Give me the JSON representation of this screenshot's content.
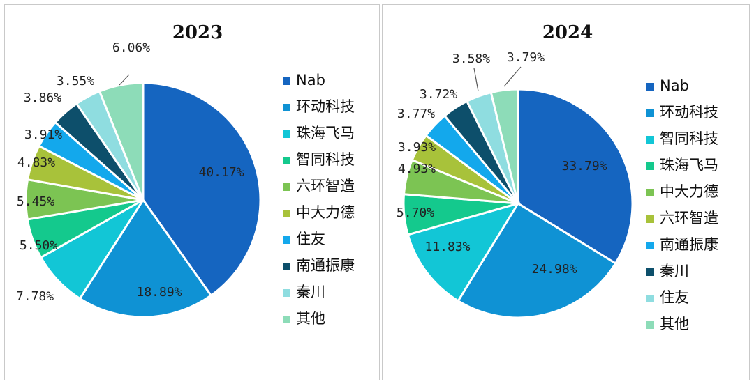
{
  "chart_data": [
    {
      "type": "pie",
      "title": "2023",
      "categories": [
        "Nab",
        "环动科技",
        "珠海飞马",
        "智同科技",
        "六环智造",
        "中大力德",
        "住友",
        "南通振康",
        "秦川",
        "其他"
      ],
      "values": [
        40.17,
        18.89,
        7.78,
        5.5,
        5.45,
        4.83,
        3.91,
        3.86,
        3.55,
        6.06
      ],
      "value_labels": [
        "40.17%",
        "18.89%",
        "7.78%",
        "5.50%",
        "5.45%",
        "4.83%",
        "3.91%",
        "3.86%",
        "3.55%",
        "6.06%"
      ],
      "colors": [
        "#1565c0",
        "#0f92d4",
        "#12c6d6",
        "#14c98d",
        "#7cc453",
        "#a8c23a",
        "#13a8ec",
        "#0d4f6b",
        "#8fdde0",
        "#8ddcb8"
      ],
      "legend": "right",
      "legend_entries": [
        "Nab",
        "环动科技",
        "珠海飞马",
        "智同科技",
        "六环智造",
        "中大力德",
        "住友",
        "南通振康",
        "秦川",
        "其他"
      ]
    },
    {
      "type": "pie",
      "title": "2024",
      "categories": [
        "Nab",
        "环动科技",
        "智同科技",
        "珠海飞马",
        "中大力德",
        "六环智造",
        "南通振康",
        "秦川",
        "住友",
        "其他"
      ],
      "values": [
        33.79,
        24.98,
        11.83,
        5.7,
        4.93,
        3.93,
        3.77,
        3.72,
        3.58,
        3.79
      ],
      "value_labels": [
        "33.79%",
        "24.98%",
        "11.83%",
        "5.70%",
        "4.93%",
        "3.93%",
        "3.77%",
        "3.72%",
        "3.58%",
        "3.79%"
      ],
      "colors": [
        "#1565c0",
        "#0f92d4",
        "#12c6d6",
        "#14c98d",
        "#7cc453",
        "#a8c23a",
        "#13a8ec",
        "#0d4f6b",
        "#8fdde0",
        "#8ddcb8"
      ],
      "legend": "right",
      "legend_entries": [
        "Nab",
        "环动科技",
        "智同科技",
        "珠海飞马",
        "中大力德",
        "六环智造",
        "南通振康",
        "秦川",
        "住友",
        "其他"
      ]
    }
  ]
}
